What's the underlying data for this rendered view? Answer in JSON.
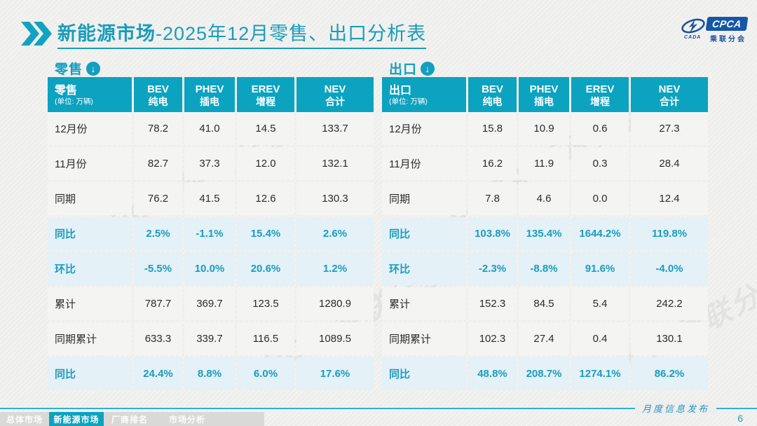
{
  "title": {
    "bold": "新能源市场",
    "rest": "-2025年12月零售、出口分析表"
  },
  "logo": {
    "name": "CPCA",
    "sub": "乘联分会",
    "small": "CADA"
  },
  "watermark": "CPCA 乘联分会",
  "tables": [
    {
      "section_label": "零售",
      "corner": {
        "name": "零售",
        "unit": "(单位: 万辆)"
      },
      "columns": [
        {
          "en": "BEV",
          "zh": "纯电"
        },
        {
          "en": "PHEV",
          "zh": "插电"
        },
        {
          "en": "EREV",
          "zh": "增程"
        },
        {
          "en": "NEV",
          "zh": "合计"
        }
      ],
      "rows": [
        {
          "label": "12月份",
          "values": [
            "78.2",
            "41.0",
            "14.5",
            "133.7"
          ],
          "highlight": false
        },
        {
          "label": "11月份",
          "values": [
            "82.7",
            "37.3",
            "12.0",
            "132.1"
          ],
          "highlight": false
        },
        {
          "label": "同期",
          "values": [
            "76.2",
            "41.5",
            "12.6",
            "130.3"
          ],
          "highlight": false
        },
        {
          "label": "同比",
          "values": [
            "2.5%",
            "-1.1%",
            "15.4%",
            "2.6%"
          ],
          "highlight": true
        },
        {
          "label": "环比",
          "values": [
            "-5.5%",
            "10.0%",
            "20.6%",
            "1.2%"
          ],
          "highlight": true
        },
        {
          "label": "累计",
          "values": [
            "787.7",
            "369.7",
            "123.5",
            "1280.9"
          ],
          "highlight": false
        },
        {
          "label": "同期累计",
          "values": [
            "633.3",
            "339.7",
            "116.5",
            "1089.5"
          ],
          "highlight": false
        },
        {
          "label": "同比",
          "values": [
            "24.4%",
            "8.8%",
            "6.0%",
            "17.6%"
          ],
          "highlight": true
        }
      ]
    },
    {
      "section_label": "出口",
      "corner": {
        "name": "出口",
        "unit": "(单位: 万辆)"
      },
      "columns": [
        {
          "en": "BEV",
          "zh": "纯电"
        },
        {
          "en": "PHEV",
          "zh": "插电"
        },
        {
          "en": "EREV",
          "zh": "增程"
        },
        {
          "en": "NEV",
          "zh": "合计"
        }
      ],
      "rows": [
        {
          "label": "12月份",
          "values": [
            "15.8",
            "10.9",
            "0.6",
            "27.3"
          ],
          "highlight": false
        },
        {
          "label": "11月份",
          "values": [
            "16.2",
            "11.9",
            "0.3",
            "28.4"
          ],
          "highlight": false
        },
        {
          "label": "同期",
          "values": [
            "7.8",
            "4.6",
            "0.0",
            "12.4"
          ],
          "highlight": false
        },
        {
          "label": "同比",
          "values": [
            "103.8%",
            "135.4%",
            "1644.2%",
            "119.8%"
          ],
          "highlight": true
        },
        {
          "label": "环比",
          "values": [
            "-2.3%",
            "-8.8%",
            "91.6%",
            "-4.0%"
          ],
          "highlight": true
        },
        {
          "label": "累计",
          "values": [
            "152.3",
            "84.5",
            "5.4",
            "242.2"
          ],
          "highlight": false
        },
        {
          "label": "同期累计",
          "values": [
            "102.3",
            "27.4",
            "0.4",
            "130.1"
          ],
          "highlight": false
        },
        {
          "label": "同比",
          "values": [
            "48.8%",
            "208.7%",
            "1274.1%",
            "86.2%"
          ],
          "highlight": true
        }
      ]
    }
  ],
  "footer": {
    "tabs": [
      "总体市场",
      "新能源市场",
      "厂商排名",
      "市场分析"
    ],
    "active_index": 1,
    "publish_label": "月度信息发布",
    "page_number": "6"
  }
}
